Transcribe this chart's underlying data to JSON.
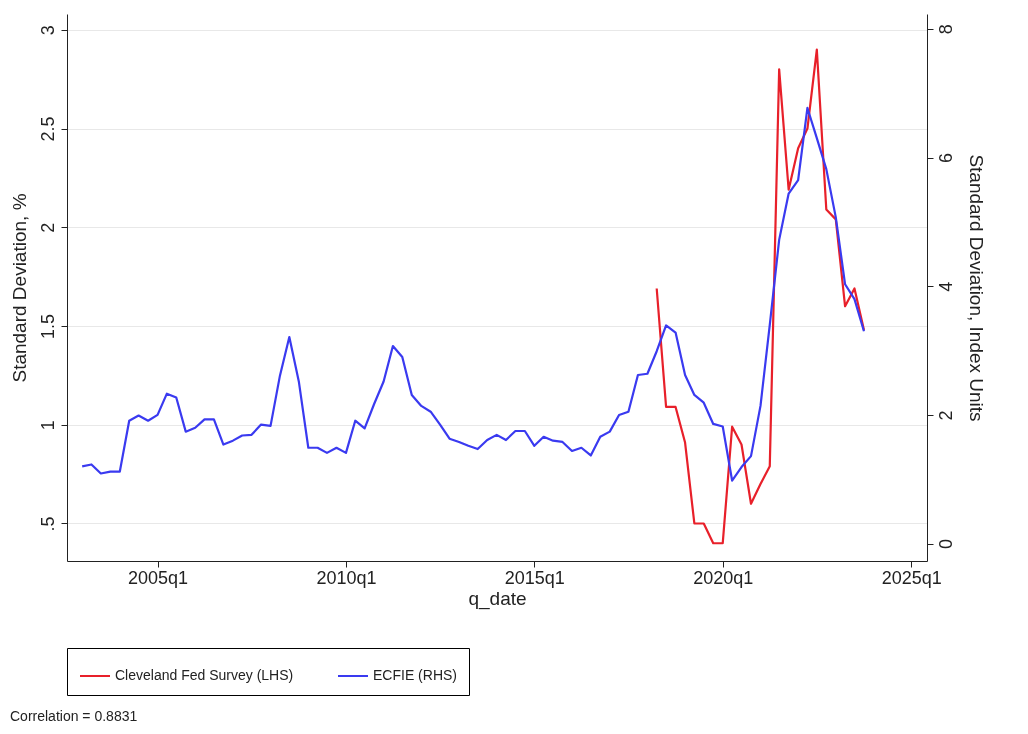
{
  "chart_data": {
    "type": "line",
    "xlabel": "q_date",
    "ylabel": "Standard Deviation, %",
    "y2label": "Standard Deviation, Index Units",
    "xlim": [
      "2002-08-07",
      "2025-06-03"
    ],
    "xticks": [
      {
        "value": "2005-01",
        "label": "2005q1"
      },
      {
        "value": "2010-01",
        "label": "2010q1"
      },
      {
        "value": "2015-01",
        "label": "2015q1"
      },
      {
        "value": "2020-01",
        "label": "2020q1"
      },
      {
        "value": "2025-01",
        "label": "2025q1"
      }
    ],
    "ylim": [
      0.31,
      3.08
    ],
    "yticks": [
      {
        "value": 0.5,
        "label": ".5"
      },
      1,
      1.5,
      2,
      2.5,
      3
    ],
    "y2lim": [
      -0.27,
      8.23
    ],
    "y2ticks": [
      0,
      2,
      4,
      6,
      8
    ],
    "grid": "y",
    "legend": "bottom",
    "annotations": [
      "Correlation = 0.8831"
    ],
    "series": [
      {
        "name": "Cleveland Fed Survey (LHS)",
        "color": "#e8202a",
        "x": [
          "2018-04",
          "2018-07",
          "2018-10",
          "2019-01",
          "2019-04",
          "2019-07",
          "2019-10",
          "2020-01",
          "2020-04",
          "2020-07",
          "2020-10",
          "2021-01",
          "2021-04",
          "2021-07",
          "2021-10",
          "2022-01",
          "2022-04",
          "2022-07",
          "2022-10",
          "2023-01",
          "2023-04",
          "2023-07",
          "2023-10"
        ],
        "values": [
          1.69,
          1.09,
          1.09,
          0.91,
          0.5,
          0.5,
          0.4,
          0.4,
          0.99,
          0.9,
          0.6,
          0.7,
          0.79,
          2.8,
          2.19,
          2.4,
          2.5,
          2.9,
          2.09,
          2.04,
          1.6,
          1.69,
          1.48
        ]
      },
      {
        "name": "ECFIE (RHS)",
        "color": "#3a3af0",
        "axis": "y2",
        "x": [
          "2003-01",
          "2003-04",
          "2003-07",
          "2003-10",
          "2004-01",
          "2004-04",
          "2004-07",
          "2004-10",
          "2005-01",
          "2005-04",
          "2005-07",
          "2005-10",
          "2006-01",
          "2006-04",
          "2006-07",
          "2006-10",
          "2007-01",
          "2007-04",
          "2007-07",
          "2007-10",
          "2008-01",
          "2008-04",
          "2008-07",
          "2008-10",
          "2009-01",
          "2009-04",
          "2009-07",
          "2009-10",
          "2010-01",
          "2010-04",
          "2010-07",
          "2010-10",
          "2011-01",
          "2011-04",
          "2011-07",
          "2011-10",
          "2012-01",
          "2012-04",
          "2012-07",
          "2012-10",
          "2013-01",
          "2013-04",
          "2013-07",
          "2013-10",
          "2014-01",
          "2014-04",
          "2014-07",
          "2014-10",
          "2015-01",
          "2015-04",
          "2015-07",
          "2015-10",
          "2016-01",
          "2016-04",
          "2016-07",
          "2016-10",
          "2017-01",
          "2017-04",
          "2017-07",
          "2017-10",
          "2018-01",
          "2018-04",
          "2018-07",
          "2018-10",
          "2019-01",
          "2019-04",
          "2019-07",
          "2019-10",
          "2020-01",
          "2020-04",
          "2020-07",
          "2020-10",
          "2021-01",
          "2021-04",
          "2021-07",
          "2021-10",
          "2022-01",
          "2022-04",
          "2022-07",
          "2022-10",
          "2023-01",
          "2023-04",
          "2023-07",
          "2023-10"
        ],
        "values": [
          1.2,
          1.23,
          1.09,
          1.12,
          1.12,
          1.91,
          1.99,
          1.91,
          2.0,
          2.33,
          2.27,
          1.74,
          1.8,
          1.93,
          1.93,
          1.54,
          1.6,
          1.68,
          1.69,
          1.85,
          1.83,
          2.61,
          3.21,
          2.52,
          1.49,
          1.49,
          1.41,
          1.49,
          1.41,
          1.91,
          1.79,
          2.17,
          2.52,
          3.07,
          2.9,
          2.31,
          2.14,
          2.05,
          1.85,
          1.63,
          1.58,
          1.52,
          1.47,
          1.61,
          1.69,
          1.61,
          1.75,
          1.75,
          1.52,
          1.66,
          1.6,
          1.58,
          1.44,
          1.49,
          1.37,
          1.66,
          1.74,
          2.0,
          2.05,
          2.62,
          2.64,
          2.99,
          3.39,
          3.28,
          2.62,
          2.31,
          2.19,
          1.86,
          1.82,
          0.98,
          1.19,
          1.36,
          2.14,
          3.4,
          4.72,
          5.44,
          5.65,
          6.77,
          6.3,
          5.82,
          5.07,
          4.03,
          3.8,
          3.3
        ]
      }
    ]
  }
}
